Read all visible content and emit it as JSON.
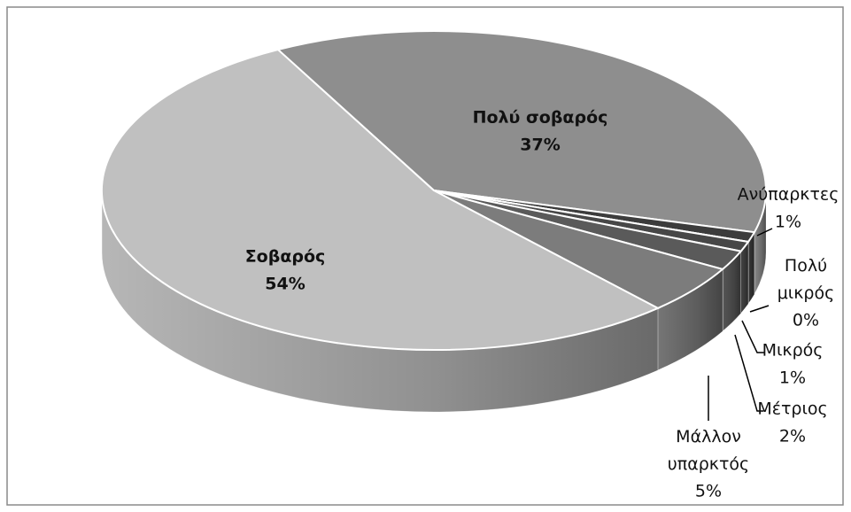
{
  "chart_data": {
    "type": "pie3d",
    "categories": [
      "Πολύ σοβαρός",
      "Ανύπαρκτες",
      "Πολύ μικρός",
      "Μικρός",
      "Μέτριος",
      "Μάλλον υπαρκτός",
      "Σοβαρός"
    ],
    "values": [
      37,
      1,
      0,
      1,
      2,
      5,
      54
    ],
    "value_labels": [
      "37%",
      "1%",
      "0%",
      "1%",
      "2%",
      "5%",
      "54%"
    ],
    "colors": [
      "#8e8e8e",
      "#3c3c3c",
      "#c8c8c8",
      "#474747",
      "#5a5a5a",
      "#7c7c7c",
      "#c0c0c0"
    ]
  }
}
